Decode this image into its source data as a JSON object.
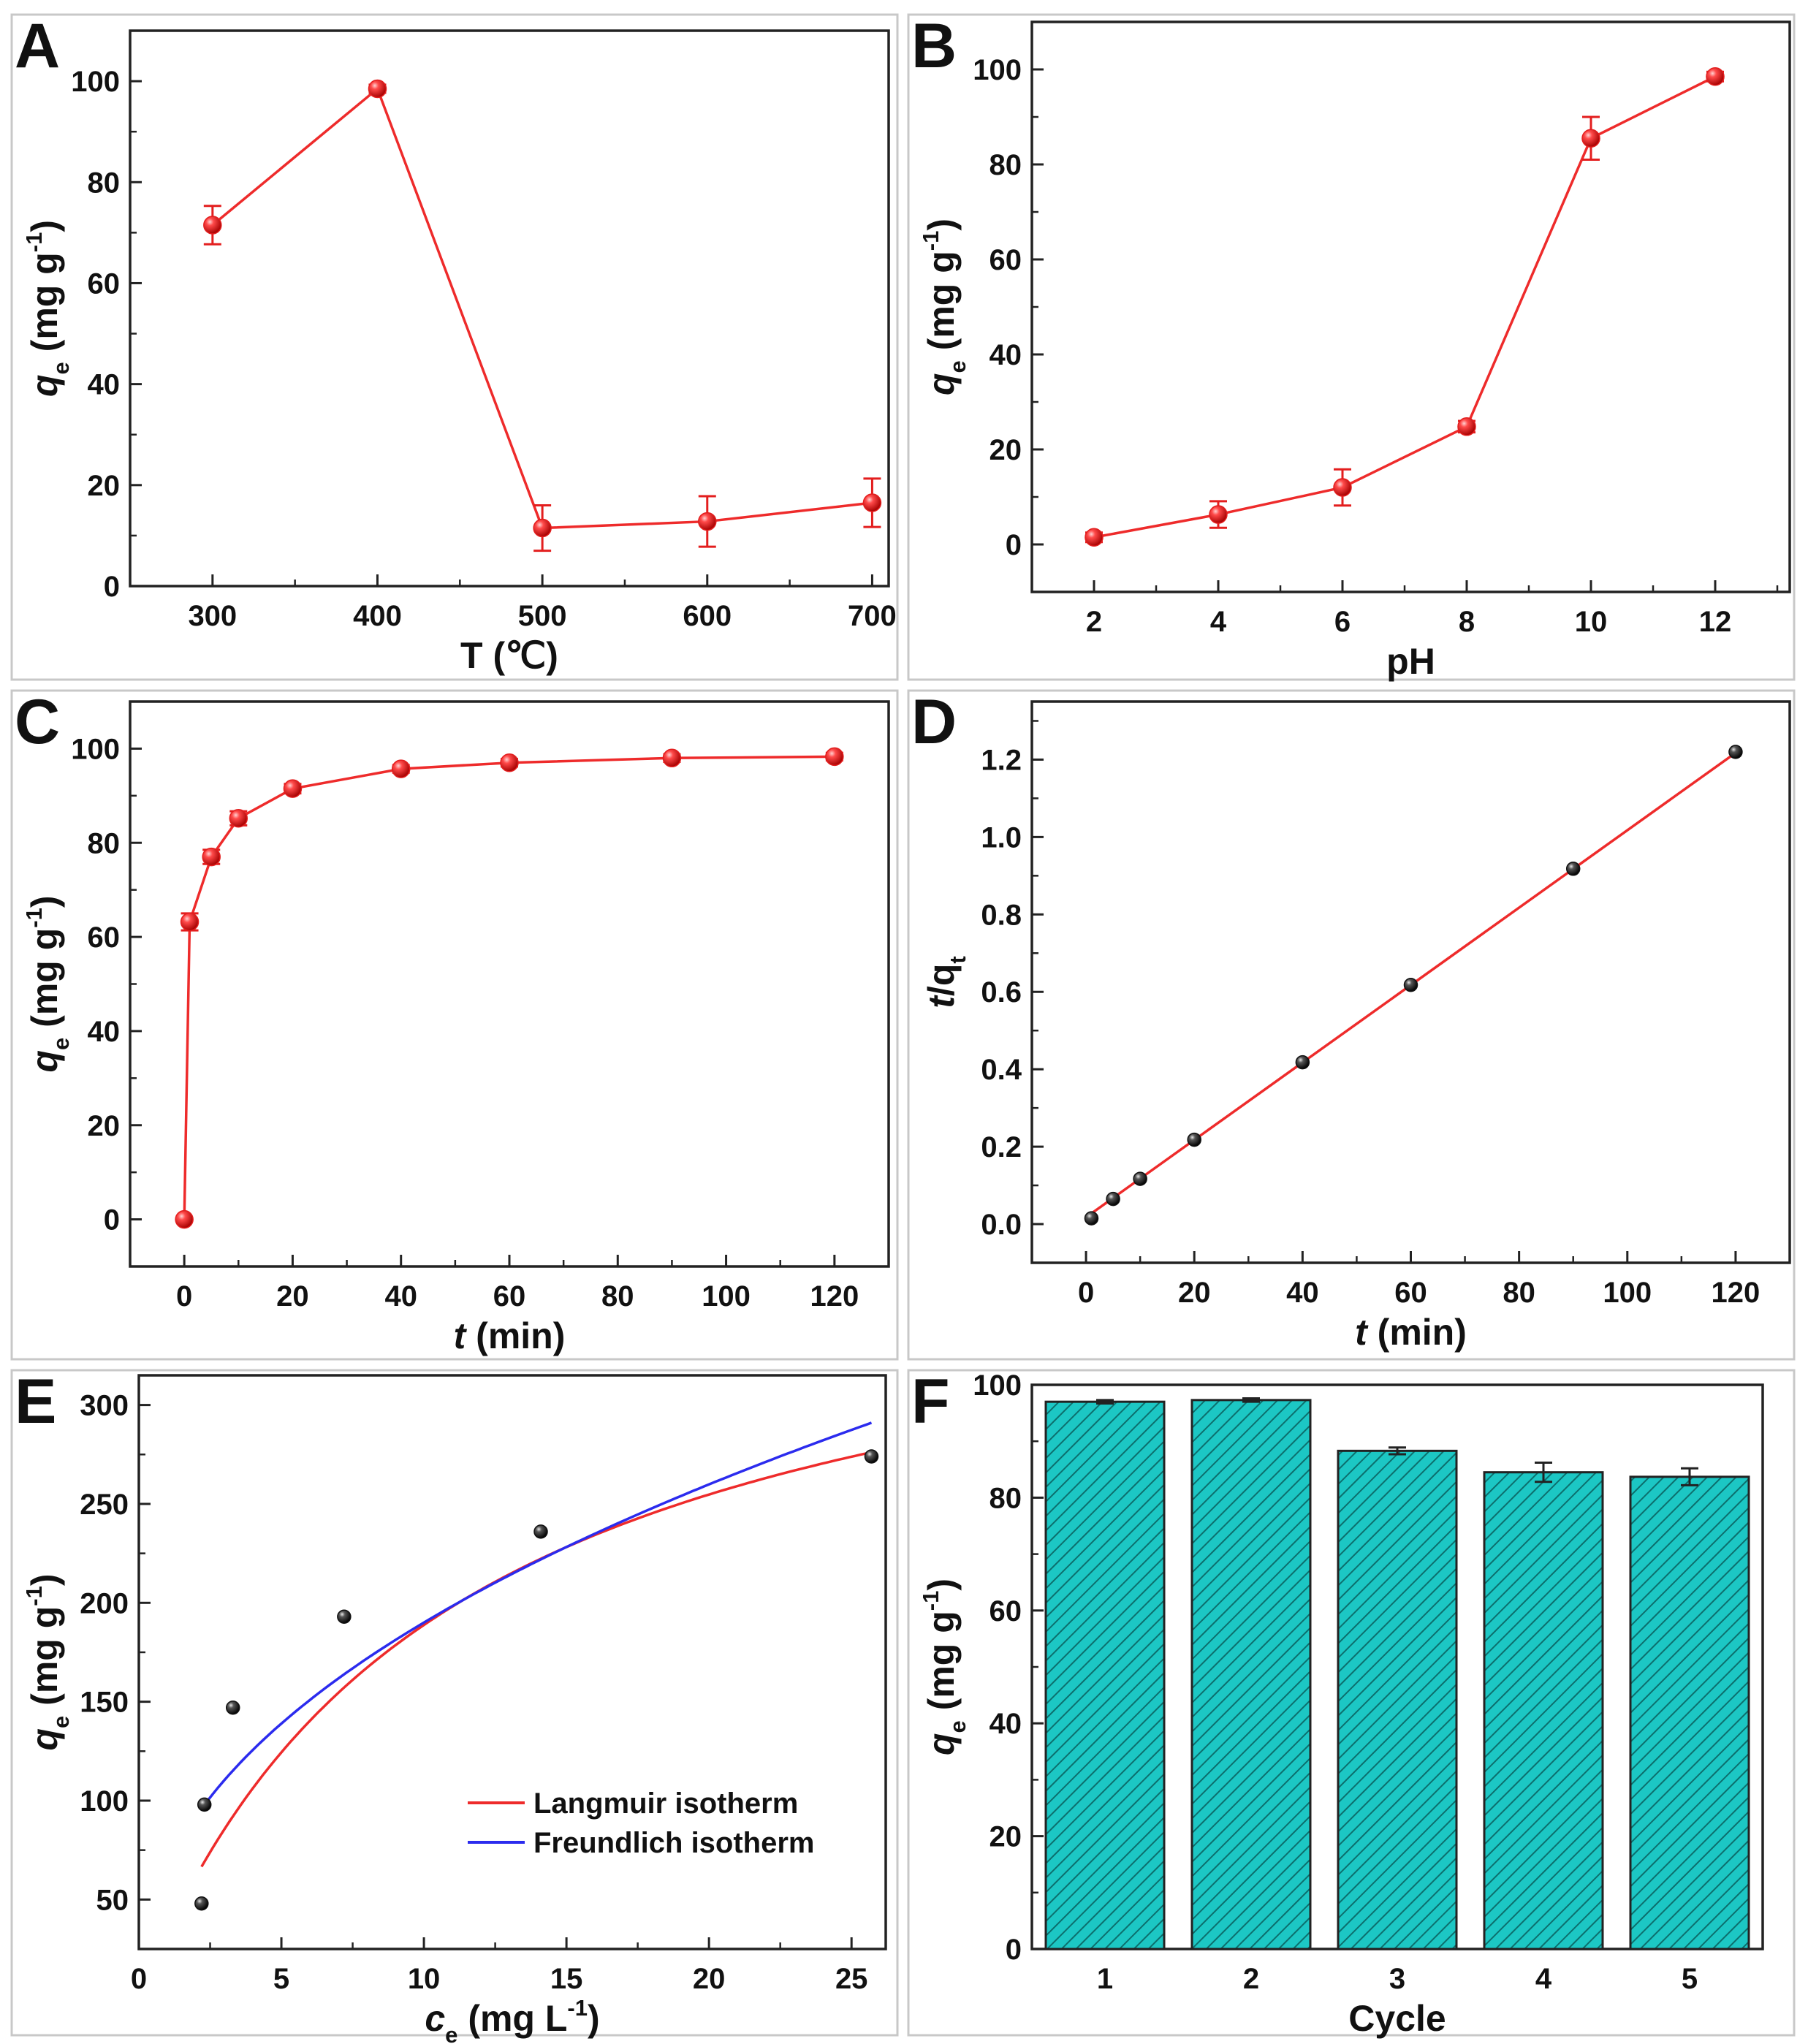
{
  "colors": {
    "line": "#ee2b2b",
    "marker_red": "#e31e1e",
    "marker_black": "#111111",
    "freundlich": "#2b2bee",
    "bar_fill": "#1cc7c4",
    "panel_border": "#c8c8c8",
    "axis": "#222222"
  },
  "chart_data": [
    {
      "id": "A",
      "type": "line",
      "panel_label": "A",
      "xlabel": "T (℃)",
      "ylabel": {
        "var": "q",
        "sub": "e",
        "rest": " (mg g",
        "sup": "-1",
        "close": ")"
      },
      "xlim": [
        250,
        710
      ],
      "ylim": [
        0,
        110
      ],
      "xticks": [
        300,
        400,
        500,
        600,
        700
      ],
      "yticks": [
        0,
        20,
        40,
        60,
        80,
        100
      ],
      "x": [
        300,
        400,
        500,
        600,
        700
      ],
      "y": [
        71.5,
        98.5,
        11.5,
        12.8,
        16.5
      ],
      "yerr": [
        3.8,
        0.8,
        4.5,
        5.0,
        4.8
      ],
      "marker": "red"
    },
    {
      "id": "B",
      "type": "line",
      "panel_label": "B",
      "xlabel": "pH",
      "ylabel": {
        "var": "q",
        "sub": "e",
        "rest": " (mg g",
        "sup": "-1",
        "close": ")"
      },
      "xlim": [
        1,
        13.2
      ],
      "ylim": [
        -10,
        110
      ],
      "xticks": [
        2,
        4,
        6,
        8,
        10,
        12
      ],
      "yticks": [
        0,
        20,
        40,
        60,
        80,
        100
      ],
      "x": [
        2,
        4,
        6,
        8,
        10,
        12
      ],
      "y": [
        1.5,
        6.3,
        12.0,
        24.8,
        85.5,
        98.5
      ],
      "yerr": [
        1.0,
        2.8,
        3.8,
        1.2,
        4.5,
        1.0
      ],
      "marker": "red"
    },
    {
      "id": "C",
      "type": "line",
      "panel_label": "C",
      "xlabel": {
        "var": "t",
        "rest": " (min)"
      },
      "ylabel": {
        "var": "q",
        "sub": "e",
        "rest": " (mg g",
        "sup": "-1",
        "close": ")"
      },
      "xlim": [
        -10,
        130
      ],
      "ylim": [
        -10,
        110
      ],
      "xticks": [
        0,
        20,
        40,
        60,
        80,
        100,
        120
      ],
      "yticks": [
        0,
        20,
        40,
        60,
        80,
        100
      ],
      "x": [
        0,
        1,
        5,
        10,
        20,
        40,
        60,
        90,
        120
      ],
      "y": [
        0,
        63.2,
        77.0,
        85.2,
        91.5,
        95.7,
        97.0,
        98.0,
        98.3
      ],
      "yerr": [
        0,
        1.8,
        1.5,
        1.5,
        1.0,
        0.8,
        0.8,
        0.8,
        0.8
      ],
      "marker": "red"
    },
    {
      "id": "D",
      "type": "line",
      "panel_label": "D",
      "xlabel": {
        "var": "t",
        "rest": " (min)"
      },
      "ylabel": {
        "var": "t",
        "rest": "/q",
        "sub": "t"
      },
      "xlim": [
        -10,
        130
      ],
      "ylim": [
        -0.1,
        1.35
      ],
      "xticks": [
        0,
        20,
        40,
        60,
        80,
        100,
        120
      ],
      "yticks": [
        0.0,
        0.2,
        0.4,
        0.6,
        0.8,
        1.0,
        1.2
      ],
      "ytick_format": "1",
      "x": [
        1,
        5,
        10,
        20,
        40,
        60,
        90,
        120
      ],
      "y": [
        0.015,
        0.065,
        0.117,
        0.218,
        0.418,
        0.618,
        0.918,
        1.22
      ],
      "fit": {
        "slope": 0.01,
        "intercept": 0.0175,
        "x_range": [
          1,
          120
        ]
      },
      "marker": "black"
    },
    {
      "id": "E",
      "type": "scatter",
      "panel_label": "E",
      "xlabel": {
        "var": "c",
        "sub": "e",
        "rest": " (mg L",
        "sup": "-1",
        "close": ")"
      },
      "ylabel": {
        "var": "q",
        "sub": "e",
        "rest": " (mg g",
        "sup": "-1",
        "close": ")"
      },
      "xlim": [
        0,
        26.2
      ],
      "ylim": [
        25,
        315
      ],
      "xticks": [
        0,
        5,
        10,
        15,
        20,
        25
      ],
      "yticks": [
        50,
        100,
        150,
        200,
        250,
        300
      ],
      "x": [
        2.2,
        2.3,
        3.3,
        7.2,
        14.1,
        25.7
      ],
      "y": [
        48,
        98,
        147,
        193,
        236,
        274
      ],
      "marker": "black",
      "curves": [
        {
          "name": "Langmuir isotherm",
          "model": "langmuir",
          "qm": 391.4,
          "KL": 0.0932,
          "x_range": [
            2.2,
            25.7
          ],
          "color": "#ee2b2b"
        },
        {
          "name": "Freundlich isotherm",
          "model": "freundlich",
          "KF": 67.2,
          "n": 2.215,
          "x_range": [
            2.2,
            25.7
          ],
          "color": "#2b2bee"
        }
      ],
      "legend_position": "lower-right"
    },
    {
      "id": "F",
      "type": "bar",
      "panel_label": "F",
      "xlabel": "Cycle",
      "ylabel": {
        "var": "q",
        "sub": "e",
        "rest": " (mg g",
        "sup": "-1",
        "close": ")"
      },
      "xlim": [
        0.5,
        5.5
      ],
      "ylim": [
        0,
        100
      ],
      "categories": [
        "1",
        "2",
        "3",
        "4",
        "5"
      ],
      "yticks": [
        0,
        20,
        40,
        60,
        80,
        100
      ],
      "values": [
        97.0,
        97.3,
        88.3,
        84.5,
        83.7
      ],
      "yerr": [
        0.3,
        0.3,
        0.6,
        1.7,
        1.5
      ],
      "pattern": "diagonal-hatch"
    }
  ]
}
